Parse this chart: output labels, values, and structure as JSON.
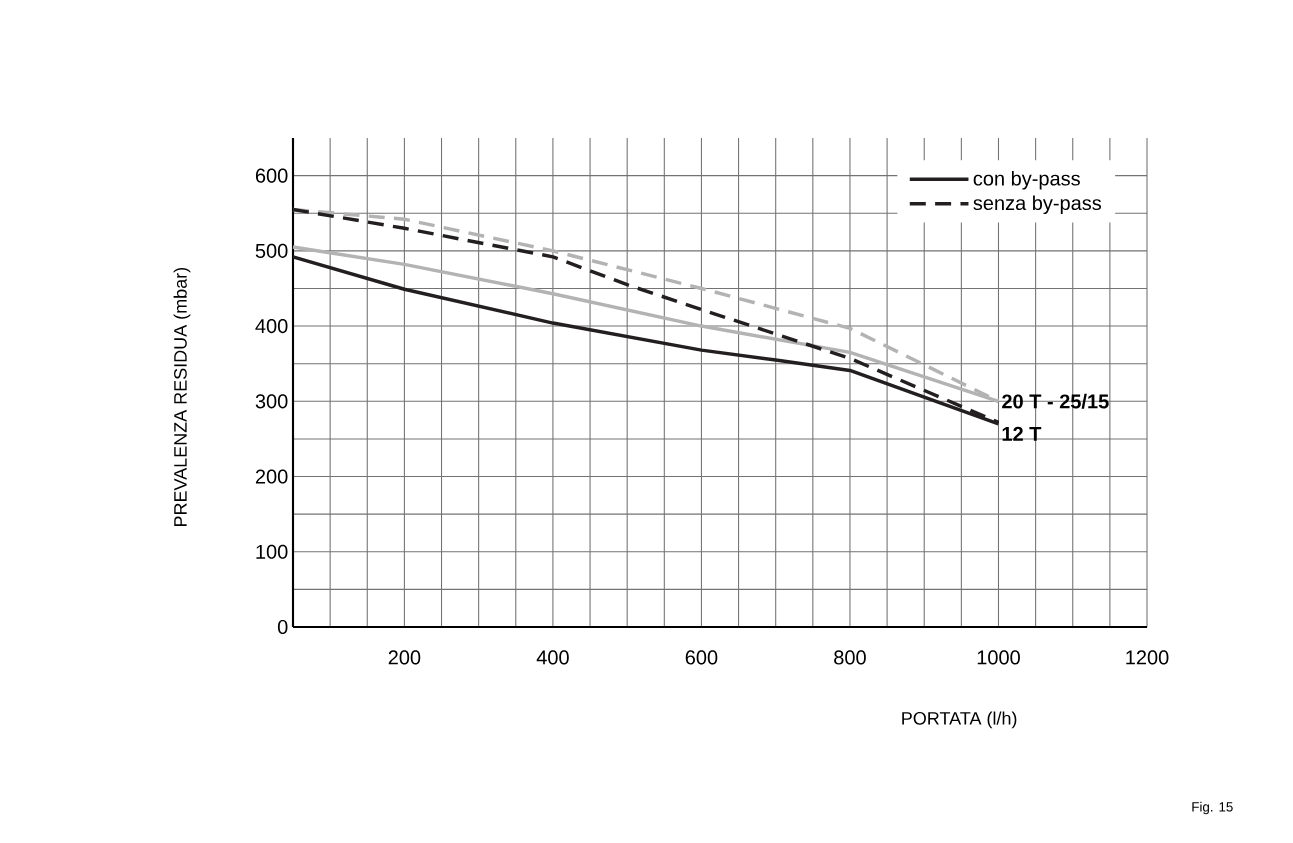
{
  "chart_data": {
    "type": "line",
    "xlabel": "PORTATA (l/h)",
    "ylabel": "PREVALENZA RESIDUA (mbar)",
    "series": [
      {
        "color": "#b3b3b3",
        "line_style": "dashed",
        "x": [
          50,
          200,
          400,
          600,
          800,
          1000
        ],
        "values": [
          555,
          542,
          500,
          450,
          397,
          300
        ]
      },
      {
        "color": "#b3b3b3",
        "line_style": "solid",
        "x": [
          50,
          200,
          400,
          600,
          800,
          1000
        ],
        "values": [
          505,
          482,
          443,
          400,
          365,
          300
        ]
      },
      {
        "name": "senza by-pass",
        "color": "#231f20",
        "line_style": "dashed",
        "x": [
          50,
          200,
          400,
          500,
          600,
          800,
          1000
        ],
        "values": [
          555,
          530,
          492,
          455,
          422,
          357,
          272
        ]
      },
      {
        "name": "con by-pass",
        "color": "#231f20",
        "line_style": "solid",
        "x": [
          50,
          200,
          400,
          600,
          700,
          800,
          1000
        ],
        "values": [
          492,
          449,
          404,
          368,
          355,
          341,
          270
        ]
      }
    ],
    "xlim": [
      50,
      1200
    ],
    "ylim": [
      0,
      650
    ],
    "xticks": [
      {
        "value": 50,
        "label": null
      },
      {
        "value": 100,
        "label": null
      },
      {
        "value": 150,
        "label": null
      },
      200,
      {
        "value": 250,
        "label": null
      },
      {
        "value": 300,
        "label": null
      },
      {
        "value": 350,
        "label": null
      },
      400,
      {
        "value": 450,
        "label": null
      },
      {
        "value": 500,
        "label": null
      },
      {
        "value": 550,
        "label": null
      },
      600,
      {
        "value": 650,
        "label": null
      },
      {
        "value": 700,
        "label": null
      },
      {
        "value": 750,
        "label": null
      },
      800,
      {
        "value": 850,
        "label": null
      },
      {
        "value": 900,
        "label": null
      },
      {
        "value": 950,
        "label": null
      },
      1000,
      {
        "value": 1050,
        "label": null
      },
      {
        "value": 1100,
        "label": null
      },
      {
        "value": 1150,
        "label": null
      },
      1200
    ],
    "yticks": [
      0,
      {
        "value": 50,
        "label": null
      },
      100,
      {
        "value": 150,
        "label": null
      },
      200,
      {
        "value": 250,
        "label": null
      },
      300,
      {
        "value": 350,
        "label": null
      },
      400,
      {
        "value": 450,
        "label": null
      },
      500,
      {
        "value": 550,
        "label": null
      },
      600
    ],
    "grid": true,
    "legend": "top right",
    "marker": "none",
    "annotations": [
      {
        "text": "20 T - 25/15",
        "x": 1000,
        "y": 300
      },
      {
        "text": "12 T",
        "x": 1000,
        "y": 270
      },
      "Fig. 15"
    ]
  }
}
